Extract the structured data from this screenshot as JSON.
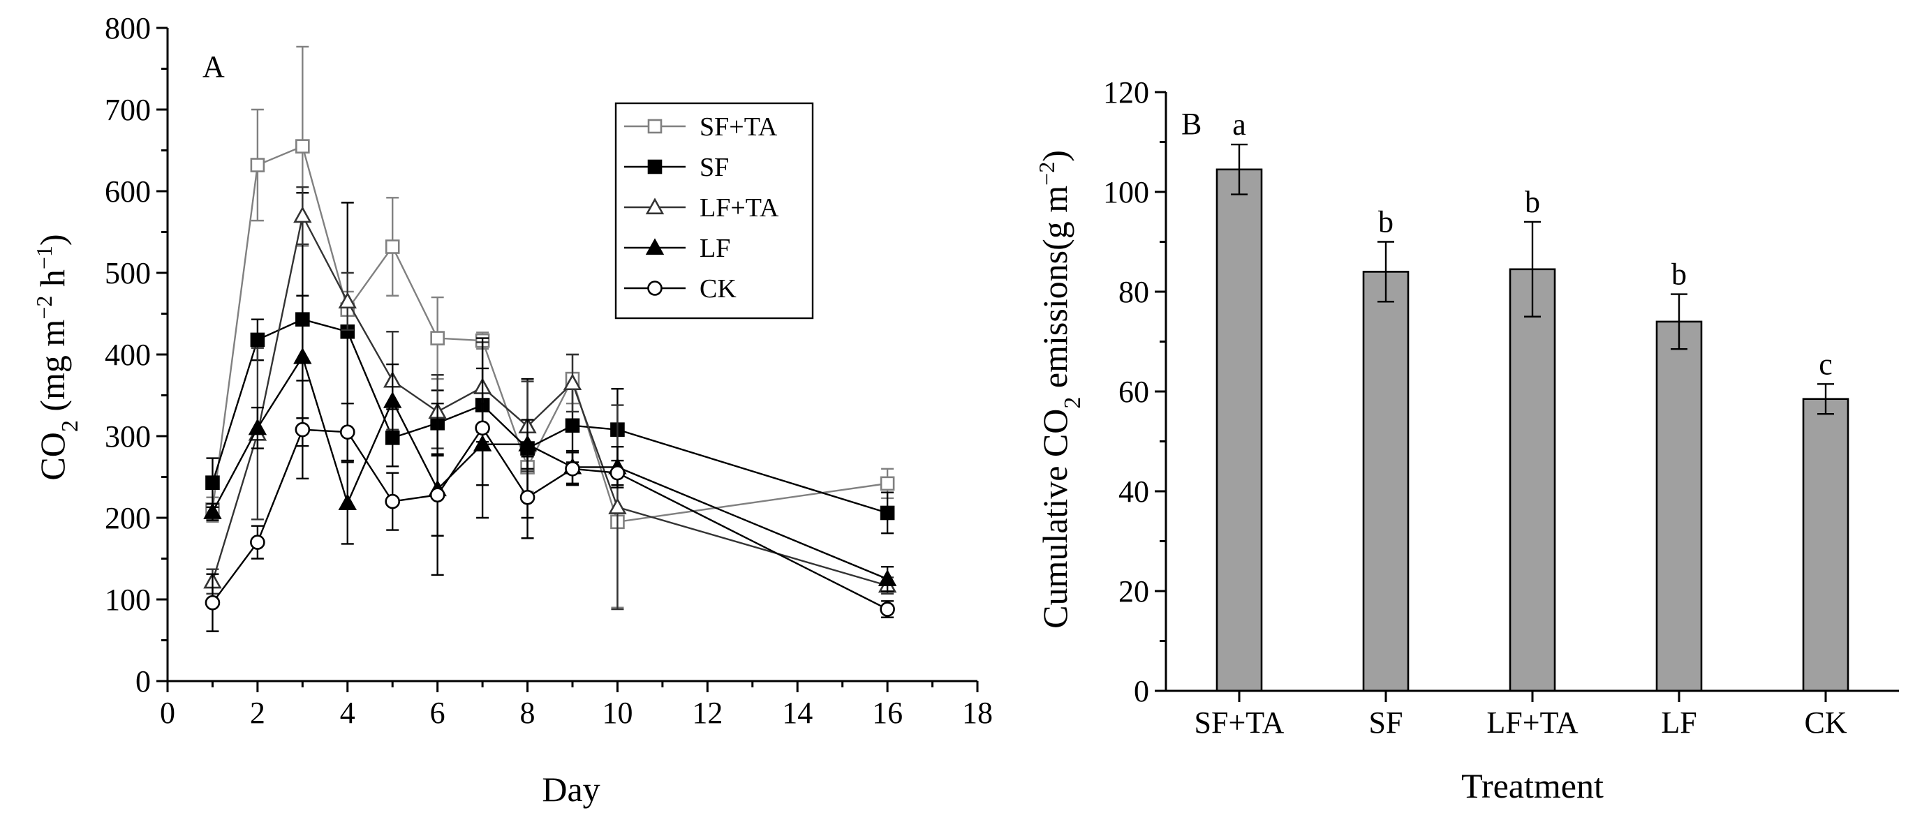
{
  "figure": {
    "panel_a_label": "A",
    "panel_b_label": "B"
  },
  "chart_data": [
    {
      "type": "line",
      "panel": "A",
      "xlabel": "Day",
      "ylabel": "CO",
      "ylabel_sub": "2",
      "ylabel_unit_pre": " (mg m",
      "ylabel_sup1": "−2",
      "ylabel_unit_mid": " h",
      "ylabel_sup2": "−1",
      "ylabel_unit_post": ")",
      "xlim": [
        0,
        18
      ],
      "ylim": [
        0,
        800
      ],
      "xticks": [
        0,
        2,
        4,
        6,
        8,
        10,
        12,
        14,
        16,
        18
      ],
      "yticks": [
        0,
        100,
        200,
        300,
        400,
        500,
        600,
        700,
        800
      ],
      "x": [
        1,
        2,
        3,
        4,
        5,
        6,
        7,
        8,
        9,
        10,
        16
      ],
      "legend_position": "top-right",
      "series": [
        {
          "name": "SF+TA",
          "marker": "square-open",
          "color": "#808080",
          "values": [
            210,
            632,
            655,
            455,
            532,
            420,
            417,
            262,
            370,
            195,
            242
          ],
          "errors": [
            15,
            68,
            122,
            22,
            60,
            50,
            10,
            30,
            30,
            105,
            18
          ]
        },
        {
          "name": "SF",
          "marker": "square-filled",
          "color": "#000000",
          "values": [
            243,
            418,
            443,
            428,
            298,
            316,
            338,
            285,
            313,
            308,
            206
          ],
          "errors": [
            30,
            25,
            155,
            158,
            35,
            40,
            45,
            85,
            45,
            50,
            25
          ]
        },
        {
          "name": "LF+TA",
          "marker": "triangle-open",
          "color": "#333333",
          "values": [
            122,
            303,
            570,
            465,
            368,
            330,
            360,
            312,
            365,
            213,
            117
          ],
          "errors": [
            15,
            105,
            35,
            35,
            60,
            45,
            55,
            55,
            35,
            125,
            10
          ]
        },
        {
          "name": "LF",
          "marker": "triangle-filled",
          "color": "#000000",
          "values": [
            207,
            310,
            397,
            218,
            343,
            235,
            290,
            290,
            262,
            262,
            125
          ],
          "errors": [
            10,
            25,
            75,
            50,
            45,
            105,
            50,
            30,
            20,
            25,
            15
          ]
        },
        {
          "name": "CK",
          "marker": "circle-open",
          "color": "#000000",
          "values": [
            96,
            170,
            308,
            305,
            220,
            228,
            310,
            225,
            260,
            255,
            88
          ],
          "errors": [
            35,
            20,
            60,
            35,
            35,
            50,
            110,
            50,
            20,
            15,
            10
          ]
        }
      ]
    },
    {
      "type": "bar",
      "panel": "B",
      "xlabel": "Treatment",
      "ylabel_pre": "Cumulative CO",
      "ylabel_sub": "2",
      "ylabel_mid": " emissions(g m",
      "ylabel_sup": "−2",
      "ylabel_post": ")",
      "ylim": [
        0,
        120
      ],
      "yticks": [
        0,
        20,
        40,
        60,
        80,
        100,
        120
      ],
      "bar_color": "#a0a0a0",
      "categories": [
        "SF+TA",
        "SF",
        "LF+TA",
        "LF",
        "CK"
      ],
      "values": [
        104.5,
        84,
        84.5,
        74,
        58.5
      ],
      "errors": [
        5,
        6,
        9.5,
        5.5,
        3
      ],
      "significance": [
        "a",
        "b",
        "b",
        "b",
        "c"
      ]
    }
  ]
}
